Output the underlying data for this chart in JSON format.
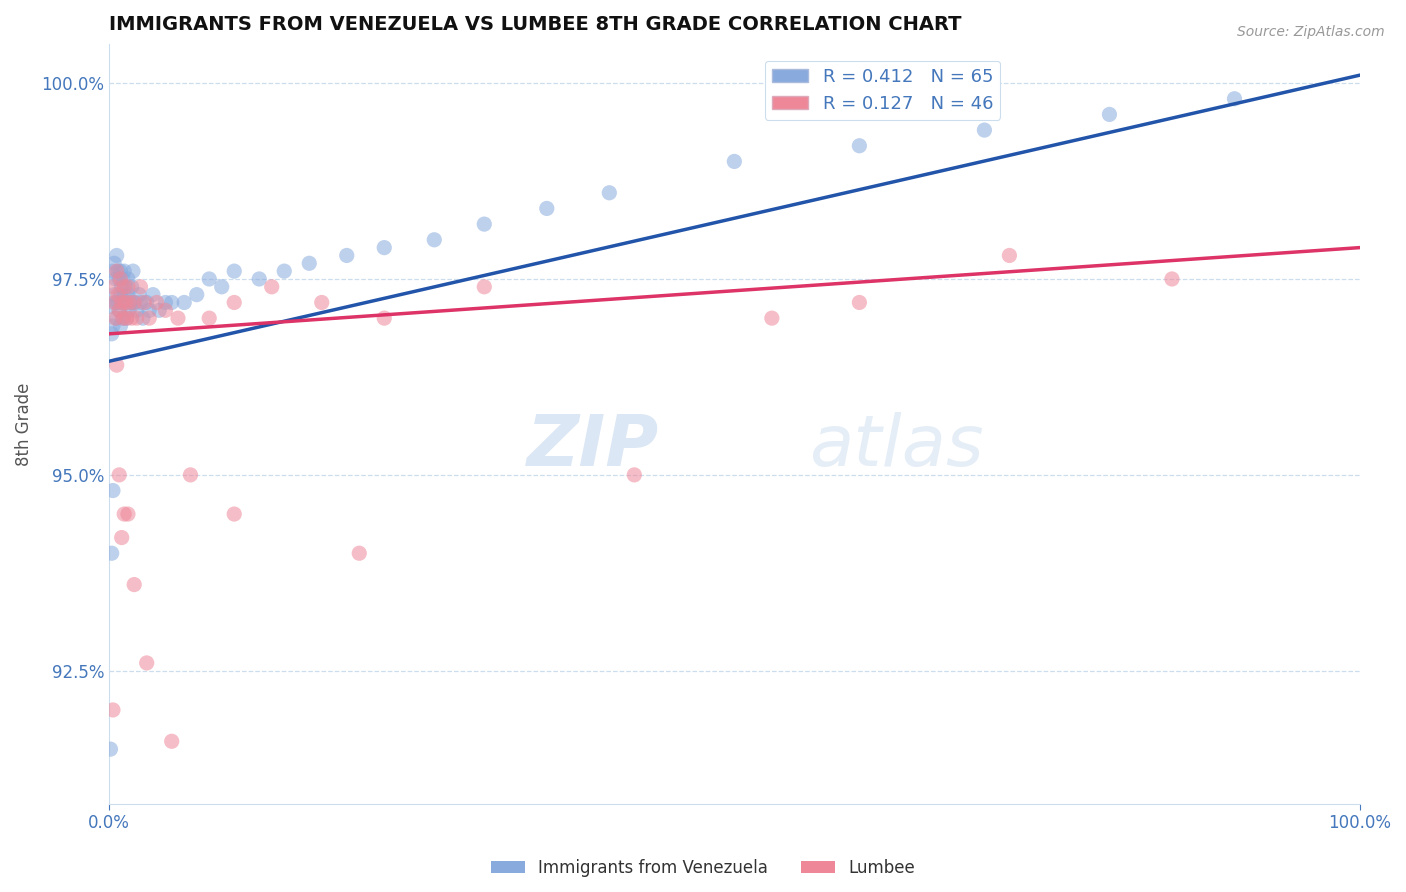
{
  "title": "IMMIGRANTS FROM VENEZUELA VS LUMBEE 8TH GRADE CORRELATION CHART",
  "source": "Source: ZipAtlas.com",
  "ylabel": "8th Grade",
  "xmin": 0.0,
  "xmax": 1.0,
  "ymin": 0.908,
  "ymax": 1.005,
  "yticks": [
    0.925,
    0.95,
    0.975,
    1.0
  ],
  "blue_color": "#88AADD",
  "pink_color": "#EE8899",
  "blue_line_color": "#2255AA",
  "pink_line_color": "#DD3366",
  "legend_label_blue": "Immigrants from Venezuela",
  "legend_label_pink": "Lumbee",
  "watermark_zip": "ZIP",
  "watermark_atlas": "atlas",
  "title_color": "#111111",
  "axis_color": "#4477BB",
  "grid_color": "#CCDDEE",
  "blue_R": 0.412,
  "blue_N": 65,
  "pink_R": 0.127,
  "pink_N": 46,
  "blue_scatter_x": [
    0.001,
    0.002,
    0.003,
    0.003,
    0.004,
    0.004,
    0.005,
    0.005,
    0.006,
    0.006,
    0.007,
    0.007,
    0.008,
    0.008,
    0.009,
    0.009,
    0.009,
    0.01,
    0.01,
    0.011,
    0.011,
    0.012,
    0.012,
    0.013,
    0.013,
    0.014,
    0.015,
    0.015,
    0.016,
    0.017,
    0.018,
    0.019,
    0.02,
    0.022,
    0.024,
    0.025,
    0.027,
    0.03,
    0.032,
    0.035,
    0.04,
    0.045,
    0.05,
    0.06,
    0.07,
    0.08,
    0.09,
    0.1,
    0.12,
    0.14,
    0.16,
    0.19,
    0.22,
    0.26,
    0.3,
    0.35,
    0.4,
    0.5,
    0.6,
    0.7,
    0.8,
    0.9,
    0.001,
    0.002,
    0.003
  ],
  "blue_scatter_y": [
    0.9715,
    0.968,
    0.976,
    0.969,
    0.973,
    0.977,
    0.975,
    0.972,
    0.97,
    0.978,
    0.972,
    0.976,
    0.971,
    0.975,
    0.973,
    0.976,
    0.969,
    0.974,
    0.972,
    0.97,
    0.975,
    0.973,
    0.976,
    0.974,
    0.972,
    0.97,
    0.975,
    0.973,
    0.971,
    0.972,
    0.974,
    0.976,
    0.972,
    0.971,
    0.973,
    0.972,
    0.97,
    0.972,
    0.971,
    0.973,
    0.971,
    0.972,
    0.972,
    0.972,
    0.973,
    0.975,
    0.974,
    0.976,
    0.975,
    0.976,
    0.977,
    0.978,
    0.979,
    0.98,
    0.982,
    0.984,
    0.986,
    0.99,
    0.992,
    0.994,
    0.996,
    0.998,
    0.915,
    0.94,
    0.948
  ],
  "pink_scatter_x": [
    0.003,
    0.004,
    0.005,
    0.006,
    0.007,
    0.008,
    0.009,
    0.01,
    0.011,
    0.012,
    0.013,
    0.014,
    0.015,
    0.016,
    0.018,
    0.02,
    0.022,
    0.025,
    0.028,
    0.032,
    0.038,
    0.045,
    0.055,
    0.065,
    0.08,
    0.1,
    0.13,
    0.17,
    0.22,
    0.3,
    0.42,
    0.53,
    0.6,
    0.72,
    0.85,
    0.003,
    0.006,
    0.008,
    0.01,
    0.012,
    0.015,
    0.02,
    0.03,
    0.05,
    0.1,
    0.2
  ],
  "pink_scatter_y": [
    0.974,
    0.972,
    0.97,
    0.976,
    0.973,
    0.971,
    0.975,
    0.972,
    0.97,
    0.974,
    0.972,
    0.97,
    0.974,
    0.972,
    0.97,
    0.972,
    0.97,
    0.974,
    0.972,
    0.97,
    0.972,
    0.971,
    0.97,
    0.95,
    0.97,
    0.972,
    0.974,
    0.972,
    0.97,
    0.974,
    0.95,
    0.97,
    0.972,
    0.978,
    0.975,
    0.92,
    0.964,
    0.95,
    0.942,
    0.945,
    0.945,
    0.936,
    0.926,
    0.916,
    0.945,
    0.94
  ],
  "blue_line_x0": 0.0,
  "blue_line_y0": 0.9645,
  "blue_line_x1": 1.0,
  "blue_line_y1": 1.001,
  "pink_line_x0": 0.0,
  "pink_line_y0": 0.968,
  "pink_line_x1": 1.0,
  "pink_line_y1": 0.979
}
